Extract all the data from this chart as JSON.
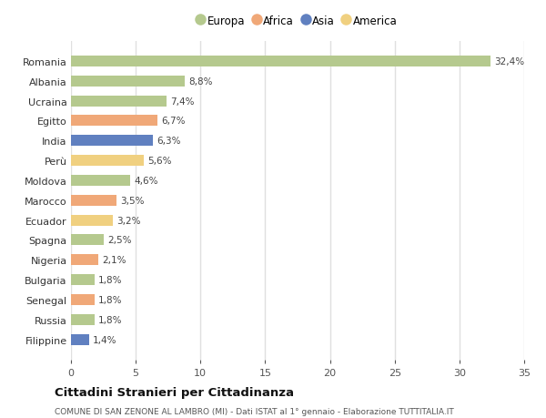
{
  "countries": [
    "Romania",
    "Albania",
    "Ucraina",
    "Egitto",
    "India",
    "Perù",
    "Moldova",
    "Marocco",
    "Ecuador",
    "Spagna",
    "Nigeria",
    "Bulgaria",
    "Senegal",
    "Russia",
    "Filippine"
  ],
  "values": [
    32.4,
    8.8,
    7.4,
    6.7,
    6.3,
    5.6,
    4.6,
    3.5,
    3.2,
    2.5,
    2.1,
    1.8,
    1.8,
    1.8,
    1.4
  ],
  "labels": [
    "32,4%",
    "8,8%",
    "7,4%",
    "6,7%",
    "6,3%",
    "5,6%",
    "4,6%",
    "3,5%",
    "3,2%",
    "2,5%",
    "2,1%",
    "1,8%",
    "1,8%",
    "1,8%",
    "1,4%"
  ],
  "continents": [
    "Europa",
    "Europa",
    "Europa",
    "Africa",
    "Asia",
    "America",
    "Europa",
    "Africa",
    "America",
    "Europa",
    "Africa",
    "Europa",
    "Africa",
    "Europa",
    "Asia"
  ],
  "colors": {
    "Europa": "#b5c98e",
    "Africa": "#f0a878",
    "Asia": "#6080c0",
    "America": "#f0d080"
  },
  "legend_order": [
    "Europa",
    "Africa",
    "Asia",
    "America"
  ],
  "title": "Cittadini Stranieri per Cittadinanza",
  "subtitle": "COMUNE DI SAN ZENONE AL LAMBRO (MI) - Dati ISTAT al 1° gennaio - Elaborazione TUTTITALIA.IT",
  "xlim": [
    0,
    35
  ],
  "xticks": [
    0,
    5,
    10,
    15,
    20,
    25,
    30,
    35
  ],
  "background_color": "#ffffff",
  "grid_color": "#e0e0e0"
}
